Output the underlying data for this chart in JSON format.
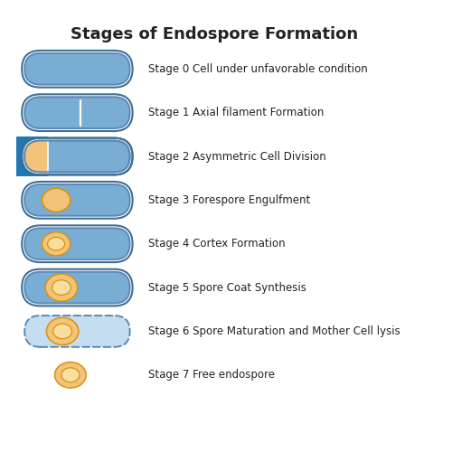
{
  "title": "Stages of Endospore Formation",
  "title_fontsize": 13,
  "background_color": "#ffffff",
  "stages": [
    "Stage 0 Cell under unfavorable condition",
    "Stage 1 Axial filament Formation",
    "Stage 2 Asymmetric Cell Division",
    "Stage 3 Forespore Engulfment",
    "Stage 4 Cortex Formation",
    "Stage 5 Spore Coat Synthesis",
    "Stage 6 Spore Maturation and Mother Cell lysis",
    "Stage 7 Free endospore"
  ],
  "cell_body_color": "#7aadd4",
  "cell_body_color_light": "#c5ddf0",
  "cell_outline_color": "#5b8ab5",
  "cell_outline_color2": "#3f6e96",
  "spore_outer_color": "#f2c47a",
  "spore_inner_color": "#d9920a",
  "spore_core_color": "#f8dfa0",
  "text_color": "#222222",
  "text_fontsize": 8.5,
  "fig_width": 5.0,
  "fig_height": 5.0,
  "dpi": 100
}
